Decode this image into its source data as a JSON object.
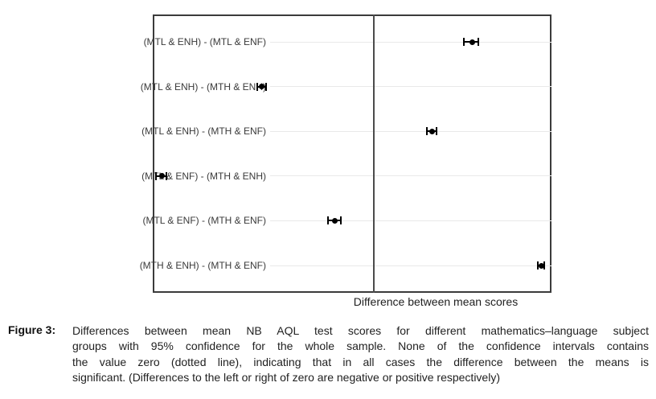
{
  "caption": {
    "label": "Figure 3:",
    "lines": [
      "Differences between mean NB AQL test scores for different mathematics–language subject",
      "groups with 95% confidence for the whole sample. None of the confidence intervals contains",
      "the value zero (dotted line), indicating that in all cases the difference between the means is",
      "significant. (Differences to the left or right of zero are negative or positive respectively)"
    ]
  },
  "chart_data": {
    "type": "scatter",
    "subtype": "mean-difference-95ci-dot-plot",
    "orientation": "horizontal",
    "title": "",
    "xlabel": "Difference between mean scores",
    "ylabel": "",
    "x_tick_labels": [],
    "x_unit_note": "axis shows no numeric ticks; values below are pixel offsets from the zero reference line",
    "x_range": [
      -275,
      221
    ],
    "zero_reference_line": 0,
    "grid": "one light horizontal line per row",
    "legend": "none",
    "categories": [
      "(MTL & ENH) - (MTL & ENF)",
      "(MTL & ENH) - (MTH & ENH)",
      "(MTL & ENH) - (MTH & ENF)",
      "(MTL & ENF) - (MTH & ENH)",
      "(MTL & ENF) - (MTH & ENF)",
      "(MTH & ENH) - (MTH & ENF)"
    ],
    "points": [
      {
        "mean": 122,
        "ci_low": 112,
        "ci_high": 130
      },
      {
        "mean": -140,
        "ci_low": -145,
        "ci_high": -134
      },
      {
        "mean": 72,
        "ci_low": 66,
        "ci_high": 78
      },
      {
        "mean": -264,
        "ci_low": -271,
        "ci_high": -258
      },
      {
        "mean": -49,
        "ci_low": -57,
        "ci_high": -41
      },
      {
        "mean": 208,
        "ci_low": 204,
        "ci_high": 212
      }
    ],
    "colors": {
      "plot_border": "#3b3b3b",
      "zero_line": "#4b4b4b",
      "gridline": "#e9e9e9",
      "marker": "#000000",
      "row_label_text": "#3a3a3a"
    }
  }
}
